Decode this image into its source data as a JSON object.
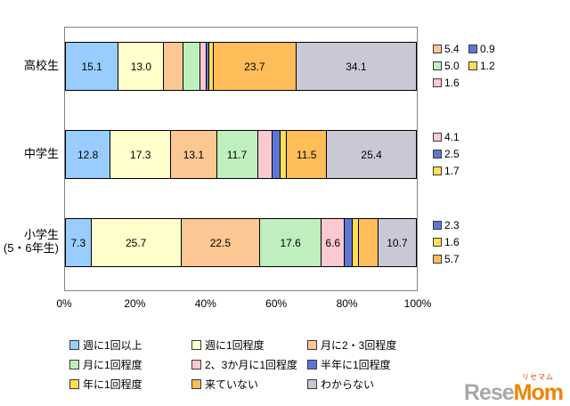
{
  "chart_data": {
    "type": "bar",
    "subtype": "stacked-horizontal-100pct",
    "orientation": "horizontal",
    "grid": false,
    "legend_position": "bottom",
    "categories": [
      "高校生",
      "中学生",
      "小学生\n(5・6年生)"
    ],
    "series": [
      {
        "name": "週に1回以上",
        "color": "#99CCFF",
        "values": [
          15.1,
          12.8,
          7.3
        ]
      },
      {
        "name": "週に1回程度",
        "color": "#FFFFCC",
        "values": [
          13.0,
          17.3,
          25.7
        ]
      },
      {
        "name": "月に2・3回程度",
        "color": "#FBC793",
        "values": [
          5.4,
          13.1,
          22.5
        ]
      },
      {
        "name": "月に1回程度",
        "color": "#BFEFBF",
        "values": [
          5.0,
          11.7,
          17.6
        ]
      },
      {
        "name": "2、3か月に1回程度",
        "color": "#FBC9CF",
        "values": [
          1.6,
          4.1,
          6.6
        ]
      },
      {
        "name": "半年に1回程度",
        "color": "#5F76D8",
        "values": [
          0.9,
          2.5,
          2.3
        ]
      },
      {
        "name": "年に1回程度",
        "color": "#FFDD55",
        "values": [
          1.2,
          1.7,
          1.6
        ]
      },
      {
        "name": "来ていない",
        "color": "#FFBD59",
        "values": [
          23.7,
          11.5,
          5.7
        ]
      },
      {
        "name": "わからない",
        "color": "#C9C9D6",
        "values": [
          34.1,
          25.4,
          10.7
        ]
      }
    ],
    "x_ticks": [
      "0%",
      "20%",
      "40%",
      "60%",
      "80%",
      "100%"
    ],
    "xlim": [
      0,
      100
    ]
  },
  "logo": {
    "gray": "Rese",
    "orange": "Mom",
    "ruby": "リセマム"
  }
}
